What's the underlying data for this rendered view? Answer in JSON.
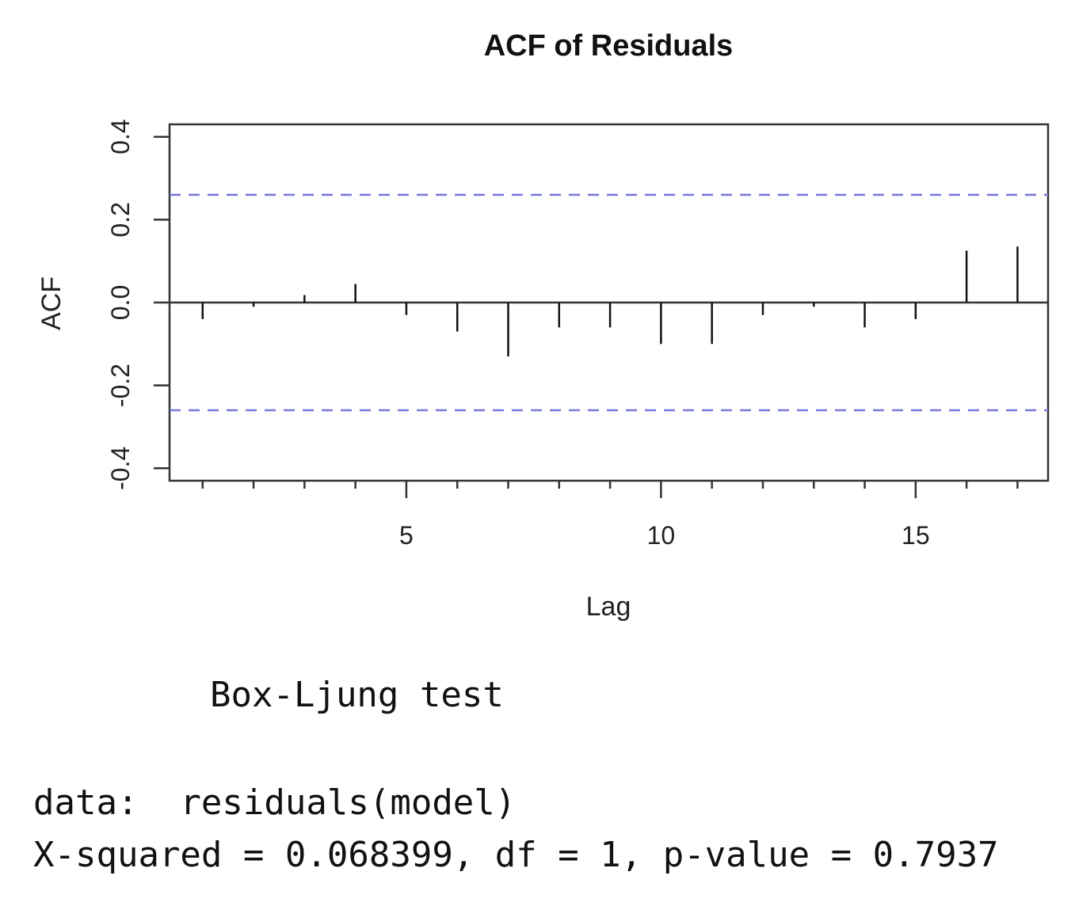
{
  "chart_data": {
    "type": "bar",
    "title": "ACF of Residuals",
    "xlabel": "Lag",
    "ylabel": "ACF",
    "xlim": [
      0.35,
      17.6
    ],
    "ylim": [
      -0.43,
      0.43
    ],
    "x_ticks": [
      5,
      10,
      15
    ],
    "y_ticks": [
      -0.4,
      -0.2,
      0.0,
      0.2,
      0.4
    ],
    "x_tick_labels": [
      "5",
      "10",
      "15"
    ],
    "y_tick_labels": [
      "-0.4",
      "-0.2",
      "0.0",
      "0.2",
      "0.4"
    ],
    "confidence_bound": 0.26,
    "grid": false,
    "lags": [
      1,
      2,
      3,
      4,
      5,
      6,
      7,
      8,
      9,
      10,
      11,
      12,
      13,
      14,
      15,
      16,
      17
    ],
    "values": [
      -0.04,
      -0.01,
      0.018,
      0.045,
      -0.03,
      -0.07,
      -0.13,
      -0.06,
      -0.06,
      -0.1,
      -0.1,
      -0.03,
      -0.01,
      -0.06,
      -0.04,
      0.125,
      0.135
    ],
    "colors": {
      "bars": "#111111",
      "bounds": "#7777dd",
      "axes": "#333333"
    }
  },
  "console": {
    "test_title": "Box-Ljung test",
    "data_line": "data:  residuals(model)",
    "stat_line": "X-squared = 0.068399, df = 1, p-value = 0.7937"
  }
}
